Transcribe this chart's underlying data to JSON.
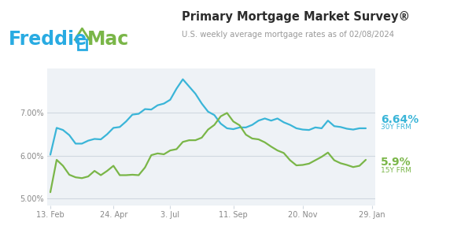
{
  "title": "Primary Mortgage Market Survey®",
  "subtitle": "U.S. weekly average mortgage rates as of 02/08/2024",
  "bg_color": "#ffffff",
  "chart_bg": "#eef2f6",
  "line30_color": "#3ab5d8",
  "line15_color": "#7ab648",
  "label30_color": "#3ab5d8",
  "label15_color": "#7ab648",
  "freddie_color": "#29abe2",
  "mac_color": "#7ab648",
  "house_roof_color": "#7ab648",
  "house_body_color": "#29abe2",
  "label30_rate": "6.64%",
  "label30_name": "30Y FRM",
  "label15_rate": "5.9%",
  "label15_name": "15Y FRM",
  "yticks": [
    5.0,
    6.0,
    7.0
  ],
  "ytick_labels": [
    "5.00%",
    "6.00%",
    "7.00%"
  ],
  "ylim": [
    4.82,
    8.05
  ],
  "xtick_labels": [
    "13. Feb",
    "24. Apr",
    "3. Jul",
    "11. Sep",
    "20. Nov",
    "29. Jan"
  ],
  "xtick_positions": [
    0,
    10,
    19,
    29,
    40,
    51
  ],
  "rate30": [
    6.02,
    6.65,
    6.6,
    6.48,
    6.28,
    6.28,
    6.35,
    6.39,
    6.38,
    6.5,
    6.65,
    6.67,
    6.8,
    6.96,
    6.98,
    7.09,
    7.08,
    7.18,
    7.22,
    7.31,
    7.57,
    7.79,
    7.62,
    7.45,
    7.22,
    7.03,
    6.95,
    6.75,
    6.64,
    6.62,
    6.66,
    6.66,
    6.72,
    6.82,
    6.87,
    6.82,
    6.87,
    6.78,
    6.72,
    6.64,
    6.61,
    6.6,
    6.66,
    6.64,
    6.82,
    6.69,
    6.67,
    6.63,
    6.61,
    6.64,
    6.64
  ],
  "rate15": [
    5.14,
    5.9,
    5.76,
    5.55,
    5.49,
    5.47,
    5.51,
    5.64,
    5.54,
    5.64,
    5.76,
    5.54,
    5.54,
    5.55,
    5.54,
    5.72,
    6.01,
    6.05,
    6.03,
    6.12,
    6.15,
    6.32,
    6.36,
    6.36,
    6.42,
    6.61,
    6.72,
    6.92,
    7.0,
    6.8,
    6.71,
    6.49,
    6.4,
    6.38,
    6.31,
    6.21,
    6.12,
    6.06,
    5.89,
    5.77,
    5.78,
    5.81,
    5.89,
    5.97,
    6.07,
    5.89,
    5.82,
    5.78,
    5.73,
    5.76,
    5.9
  ],
  "grid_color": "#d0d8e0",
  "tick_color": "#888888",
  "title_color": "#2c2c2c",
  "subtitle_color": "#999999"
}
